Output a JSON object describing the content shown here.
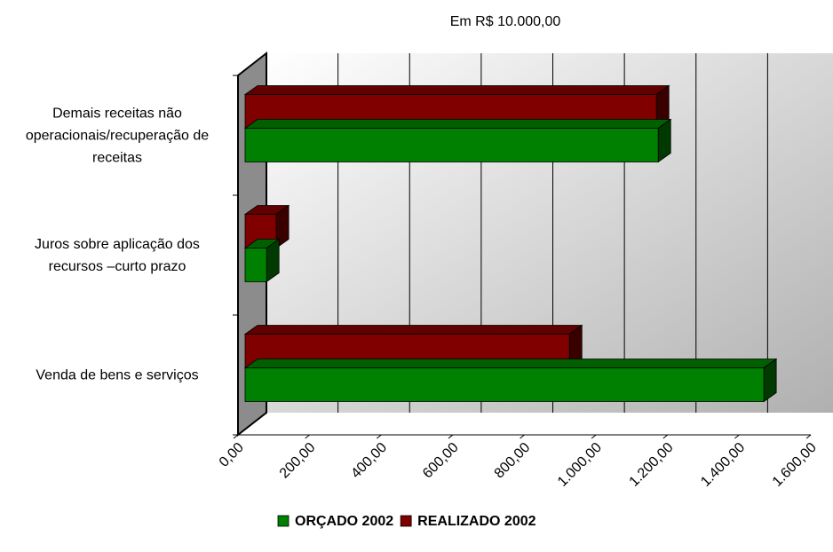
{
  "chart_data": {
    "type": "bar3d-horizontal",
    "title": "Em R$ 10.000,00",
    "categories": [
      "Venda de bens e serviços",
      "Juros sobre aplicação dos recursos –curto prazo",
      "Demais receitas não operacionais/recuperação de receitas"
    ],
    "series": [
      {
        "name": "ORÇADO 2002",
        "color": "#008000",
        "values": [
          1449,
          60,
          1154
        ]
      },
      {
        "name": "REALIZADO 2002",
        "color": "#800000",
        "values": [
          906,
          87,
          1149
        ]
      }
    ],
    "xlim": [
      0,
      1600
    ],
    "xticks": [
      {
        "value": 0,
        "label": "0,00"
      },
      {
        "value": 200,
        "label": "200,00"
      },
      {
        "value": 400,
        "label": "400,00"
      },
      {
        "value": 600,
        "label": "600,00"
      },
      {
        "value": 800,
        "label": "800,00"
      },
      {
        "value": 1000,
        "label": "1.000,00"
      },
      {
        "value": 1200,
        "label": "1.200,00"
      },
      {
        "value": 1400,
        "label": "1.400,00"
      },
      {
        "value": 1600,
        "label": "1.600,00"
      }
    ],
    "grid": true,
    "legend": "bottom"
  }
}
